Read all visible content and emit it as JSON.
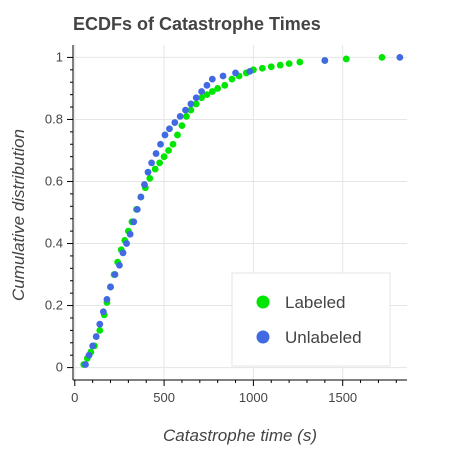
{
  "chart_data": {
    "type": "scatter",
    "title": "ECDFs of Catastrophe Times",
    "xlabel": "Catastrophe time (s)",
    "ylabel": "Cumulative distribution",
    "xlim": [
      -10,
      1860
    ],
    "ylim": [
      -0.04,
      1.04
    ],
    "xticks": [
      0,
      500,
      1000,
      1500
    ],
    "yticks": [
      0,
      0.2,
      0.4,
      0.6,
      0.8,
      1
    ],
    "grid": true,
    "legend": {
      "placement": "bottom-right"
    },
    "series": [
      {
        "name": "Labeled",
        "color": "#00e600",
        "x": [
          50,
          70,
          90,
          110,
          140,
          165,
          180,
          200,
          220,
          240,
          260,
          280,
          300,
          320,
          345,
          370,
          395,
          420,
          450,
          475,
          500,
          525,
          550,
          575,
          600,
          625,
          650,
          680,
          710,
          740,
          770,
          800,
          840,
          880,
          920,
          960,
          1000,
          1050,
          1100,
          1150,
          1200,
          1260,
          1400,
          1520,
          1720
        ],
        "y": [
          0.01,
          0.03,
          0.05,
          0.07,
          0.12,
          0.17,
          0.21,
          0.26,
          0.3,
          0.34,
          0.38,
          0.41,
          0.44,
          0.47,
          0.51,
          0.55,
          0.58,
          0.61,
          0.64,
          0.66,
          0.68,
          0.7,
          0.72,
          0.75,
          0.78,
          0.81,
          0.83,
          0.85,
          0.87,
          0.88,
          0.89,
          0.9,
          0.91,
          0.93,
          0.94,
          0.95,
          0.96,
          0.965,
          0.97,
          0.975,
          0.98,
          0.985,
          0.99,
          0.995,
          1.0
        ]
      },
      {
        "name": "Unlabeled",
        "color": "#4169e1",
        "x": [
          60,
          80,
          100,
          120,
          140,
          160,
          180,
          200,
          225,
          250,
          270,
          290,
          310,
          330,
          350,
          370,
          390,
          410,
          430,
          455,
          480,
          505,
          530,
          560,
          590,
          620,
          650,
          680,
          710,
          740,
          770,
          830,
          900,
          980,
          1400,
          1820
        ],
        "y": [
          0.01,
          0.04,
          0.07,
          0.1,
          0.14,
          0.18,
          0.22,
          0.26,
          0.3,
          0.33,
          0.37,
          0.4,
          0.43,
          0.47,
          0.51,
          0.55,
          0.59,
          0.63,
          0.66,
          0.69,
          0.72,
          0.75,
          0.77,
          0.79,
          0.81,
          0.83,
          0.85,
          0.87,
          0.89,
          0.91,
          0.93,
          0.94,
          0.95,
          0.955,
          0.99,
          1.0
        ]
      }
    ]
  }
}
